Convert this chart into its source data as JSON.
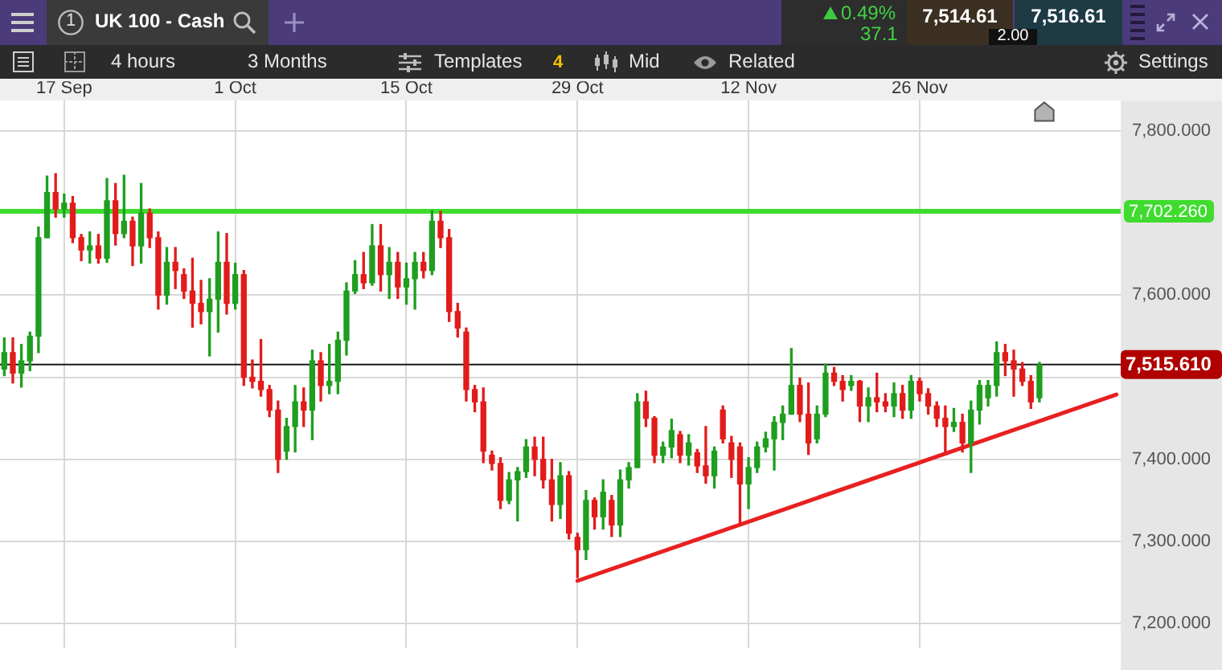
{
  "chart_data": {
    "type": "candlestick",
    "title": "UK 100 - Cash",
    "annotations": [
      "1",
      "0.49%",
      "37.1",
      "7,514.61",
      "2.00",
      "7,516.61",
      "4 hours",
      "3 Months",
      "Templates",
      "4",
      "Mid",
      "Related",
      "Settings"
    ],
    "categories": [
      null,
      null,
      null,
      null,
      null,
      null,
      null,
      "17 Sep",
      null,
      null,
      null,
      null,
      null,
      null,
      null,
      null,
      null,
      null,
      null,
      null,
      null,
      null,
      null,
      null,
      null,
      null,
      null,
      "1 Oct",
      null,
      null,
      null,
      null,
      null,
      null,
      null,
      null,
      null,
      null,
      null,
      null,
      null,
      null,
      null,
      null,
      null,
      null,
      null,
      "15 Oct",
      null,
      null,
      null,
      null,
      null,
      null,
      null,
      null,
      null,
      null,
      null,
      null,
      null,
      null,
      null,
      null,
      null,
      null,
      null,
      "29 Oct",
      null,
      null,
      null,
      null,
      null,
      null,
      null,
      null,
      null,
      null,
      null,
      null,
      null,
      null,
      null,
      null,
      null,
      null,
      null,
      "12 Nov",
      null,
      null,
      null,
      null,
      null,
      null,
      null,
      null,
      null,
      null,
      null,
      null,
      null,
      null,
      null,
      null,
      null,
      null,
      null,
      "26 Nov",
      null,
      null,
      null,
      null,
      null,
      null,
      null,
      null,
      null,
      null,
      null,
      null,
      null,
      null,
      null,
      null,
      null,
      null,
      null,
      null,
      null,
      null,
      null
    ],
    "ohlc": [
      [
        7510,
        7548,
        7502,
        7530
      ],
      [
        7530,
        7548,
        7493,
        7505
      ],
      [
        7505,
        7540,
        7488,
        7520
      ],
      [
        7520,
        7555,
        7508,
        7550
      ],
      [
        7550,
        7683,
        7530,
        7670
      ],
      [
        7670,
        7745,
        7670,
        7725
      ],
      [
        7725,
        7748,
        7695,
        7705
      ],
      [
        7705,
        7723,
        7695,
        7712
      ],
      [
        7712,
        7720,
        7664,
        7670
      ],
      [
        7670,
        7674,
        7642,
        7655
      ],
      [
        7655,
        7677,
        7639,
        7660
      ],
      [
        7660,
        7674,
        7639,
        7645
      ],
      [
        7645,
        7742,
        7640,
        7715
      ],
      [
        7715,
        7736,
        7661,
        7675
      ],
      [
        7675,
        7746,
        7670,
        7690
      ],
      [
        7690,
        7695,
        7636,
        7660
      ],
      [
        7660,
        7736,
        7639,
        7700
      ],
      [
        7700,
        7705,
        7658,
        7670
      ],
      [
        7670,
        7677,
        7583,
        7600
      ],
      [
        7600,
        7658,
        7589,
        7640
      ],
      [
        7640,
        7658,
        7608,
        7630
      ],
      [
        7625,
        7632,
        7596,
        7605
      ],
      [
        7605,
        7645,
        7561,
        7590
      ],
      [
        7590,
        7618,
        7565,
        7580
      ],
      [
        7580,
        7620,
        7526,
        7595
      ],
      [
        7595,
        7677,
        7555,
        7640
      ],
      [
        7640,
        7675,
        7577,
        7590
      ],
      [
        7590,
        7639,
        7583,
        7625
      ],
      [
        7625,
        7630,
        7490,
        7500
      ],
      [
        7500,
        7521,
        7487,
        7495
      ],
      [
        7495,
        7546,
        7477,
        7485
      ],
      [
        7485,
        7490,
        7452,
        7460
      ],
      [
        7460,
        7471,
        7384,
        7400
      ],
      [
        7410,
        7450,
        7400,
        7440
      ],
      [
        7440,
        7490,
        7409,
        7470
      ],
      [
        7470,
        7487,
        7440,
        7460
      ],
      [
        7460,
        7533,
        7424,
        7520
      ],
      [
        7520,
        7530,
        7471,
        7490
      ],
      [
        7490,
        7540,
        7480,
        7495
      ],
      [
        7495,
        7555,
        7480,
        7545
      ],
      [
        7545,
        7615,
        7527,
        7605
      ],
      [
        7605,
        7642,
        7602,
        7625
      ],
      [
        7625,
        7652,
        7608,
        7615
      ],
      [
        7615,
        7686,
        7612,
        7660
      ],
      [
        7660,
        7686,
        7605,
        7625
      ],
      [
        7625,
        7658,
        7596,
        7640
      ],
      [
        7640,
        7652,
        7596,
        7610
      ],
      [
        7610,
        7639,
        7589,
        7620
      ],
      [
        7620,
        7652,
        7583,
        7640
      ],
      [
        7640,
        7652,
        7621,
        7630
      ],
      [
        7630,
        7703,
        7625,
        7690
      ],
      [
        7690,
        7702,
        7658,
        7670
      ],
      [
        7670,
        7680,
        7568,
        7580
      ],
      [
        7580,
        7590,
        7549,
        7560
      ],
      [
        7555,
        7560,
        7471,
        7485
      ],
      [
        7485,
        7490,
        7458,
        7470
      ],
      [
        7470,
        7487,
        7396,
        7410
      ],
      [
        7405,
        7410,
        7387,
        7395
      ],
      [
        7395,
        7402,
        7340,
        7350
      ],
      [
        7350,
        7384,
        7346,
        7375
      ],
      [
        7375,
        7390,
        7325,
        7385
      ],
      [
        7385,
        7424,
        7378,
        7415
      ],
      [
        7415,
        7427,
        7380,
        7400
      ],
      [
        7400,
        7427,
        7365,
        7375
      ],
      [
        7375,
        7400,
        7325,
        7345
      ],
      [
        7345,
        7396,
        7328,
        7380
      ],
      [
        7380,
        7385,
        7303,
        7310
      ],
      [
        7305,
        7310,
        7256,
        7290
      ],
      [
        7290,
        7362,
        7278,
        7350
      ],
      [
        7350,
        7353,
        7315,
        7330
      ],
      [
        7330,
        7375,
        7315,
        7360
      ],
      [
        7350,
        7356,
        7306,
        7320
      ],
      [
        7320,
        7387,
        7306,
        7375
      ],
      [
        7375,
        7396,
        7365,
        7390
      ],
      [
        7390,
        7480,
        7390,
        7470
      ],
      [
        7470,
        7483,
        7440,
        7450
      ],
      [
        7450,
        7452,
        7396,
        7405
      ],
      [
        7405,
        7421,
        7396,
        7415
      ],
      [
        7415,
        7449,
        7402,
        7435
      ],
      [
        7430,
        7434,
        7396,
        7405
      ],
      [
        7405,
        7430,
        7393,
        7420
      ],
      [
        7408,
        7412,
        7384,
        7392
      ],
      [
        7392,
        7440,
        7371,
        7380
      ],
      [
        7380,
        7415,
        7365,
        7410
      ],
      [
        7460,
        7465,
        7420,
        7425
      ],
      [
        7420,
        7428,
        7378,
        7400
      ],
      [
        7415,
        7420,
        7321,
        7370
      ],
      [
        7370,
        7402,
        7340,
        7390
      ],
      [
        7390,
        7421,
        7384,
        7415
      ],
      [
        7415,
        7433,
        7409,
        7425
      ],
      [
        7425,
        7452,
        7387,
        7445
      ],
      [
        7445,
        7465,
        7424,
        7455
      ],
      [
        7455,
        7535,
        7455,
        7490
      ],
      [
        7490,
        7499,
        7446,
        7455
      ],
      [
        7455,
        7493,
        7406,
        7420
      ],
      [
        7425,
        7465,
        7420,
        7455
      ],
      [
        7455,
        7516,
        7452,
        7505
      ],
      [
        7505,
        7512,
        7490,
        7495
      ],
      [
        7495,
        7502,
        7471,
        7485
      ],
      [
        7490,
        7502,
        7484,
        7495
      ],
      [
        7495,
        7496,
        7446,
        7465
      ],
      [
        7465,
        7487,
        7446,
        7475
      ],
      [
        7475,
        7505,
        7458,
        7470
      ],
      [
        7470,
        7480,
        7458,
        7465
      ],
      [
        7465,
        7493,
        7452,
        7480
      ],
      [
        7480,
        7490,
        7450,
        7460
      ],
      [
        7460,
        7502,
        7450,
        7495
      ],
      [
        7495,
        7499,
        7471,
        7480
      ],
      [
        7480,
        7486,
        7455,
        7465
      ],
      [
        7465,
        7470,
        7440,
        7450
      ],
      [
        7450,
        7465,
        7409,
        7440
      ],
      [
        7440,
        7462,
        7434,
        7445
      ],
      [
        7445,
        7455,
        7409,
        7420
      ],
      [
        7420,
        7471,
        7384,
        7460
      ],
      [
        7460,
        7496,
        7443,
        7490
      ],
      [
        7475,
        7496,
        7465,
        7490
      ],
      [
        7490,
        7543,
        7477,
        7530
      ],
      [
        7530,
        7540,
        7502,
        7520
      ],
      [
        7520,
        7533,
        7477,
        7510
      ],
      [
        7510,
        7518,
        7490,
        7495
      ],
      [
        7495,
        7502,
        7462,
        7470
      ],
      [
        7475,
        7518,
        7470,
        7515
      ],
      null,
      null,
      null,
      null,
      null,
      null,
      null,
      null,
      null
    ],
    "series": [
      {
        "type": "line",
        "color": "#e82020",
        "values": [
          null,
          null,
          null,
          null,
          null,
          null,
          null,
          null,
          null,
          null,
          null,
          null,
          null,
          null,
          null,
          null,
          null,
          null,
          null,
          null,
          null,
          null,
          null,
          null,
          null,
          null,
          null,
          null,
          null,
          null,
          null,
          null,
          null,
          null,
          null,
          null,
          null,
          null,
          null,
          null,
          null,
          null,
          null,
          null,
          null,
          null,
          null,
          null,
          null,
          null,
          null,
          null,
          null,
          null,
          null,
          null,
          null,
          null,
          null,
          null,
          null,
          null,
          null,
          null,
          null,
          null,
          null,
          7252,
          null,
          null,
          null,
          null,
          null,
          null,
          null,
          null,
          null,
          null,
          null,
          null,
          null,
          null,
          null,
          null,
          null,
          null,
          null,
          null,
          null,
          null,
          null,
          null,
          null,
          null,
          null,
          null,
          null,
          null,
          null,
          null,
          null,
          null,
          null,
          null,
          null,
          null,
          null,
          null,
          null,
          null,
          null,
          null,
          null,
          null,
          null,
          null,
          null,
          null,
          null,
          null,
          null,
          null,
          null,
          null,
          null,
          null,
          null,
          null,
          null,
          null,
          7479
        ]
      }
    ],
    "ylim": [
      7170,
      7837
    ],
    "yticks": [
      {
        "value": 7200,
        "label": "7,200.000"
      },
      {
        "value": 7300,
        "label": "7,300.000"
      },
      {
        "value": 7400,
        "label": "7,400.000"
      },
      {
        "value": 7500,
        "label": null
      },
      {
        "value": 7600,
        "label": "7,600.000"
      },
      {
        "value": 7700,
        "label": null
      },
      {
        "value": 7800,
        "label": "7,800.000"
      }
    ],
    "ref_lines": [
      {
        "axis": "y",
        "value": 7702.26,
        "label": "7,702.260",
        "color": "#3fdc2f"
      },
      {
        "axis": "y",
        "value": 7515.61,
        "label": "7,515.610",
        "color": "#1a1a1a"
      }
    ],
    "grid": true,
    "legend": false
  }
}
